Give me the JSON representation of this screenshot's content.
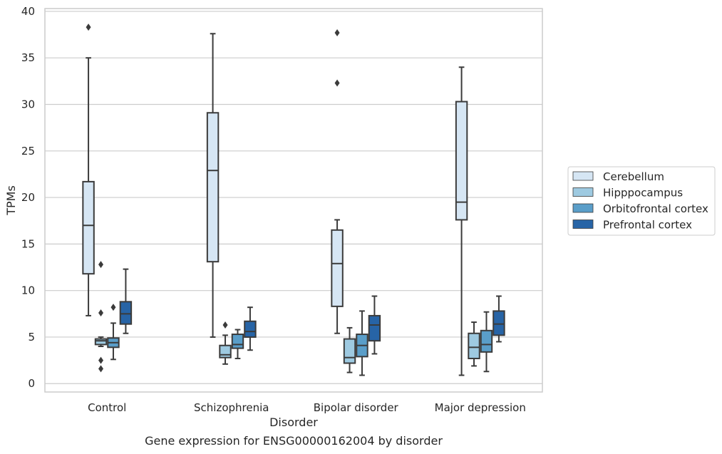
{
  "chart_data": {
    "type": "boxplot",
    "caption": "Gene expression for ENSG00000162004 by disorder",
    "xlabel": "Disorder",
    "ylabel": "TPMs",
    "ylim": [
      -0.9,
      40.3
    ],
    "yticks": [
      0,
      5,
      10,
      15,
      20,
      25,
      30,
      35,
      40
    ],
    "grid": "horizontal",
    "legend_position": "right",
    "categories": [
      "Control",
      "Schizophrenia",
      "Bipolar disorder",
      "Major depression"
    ],
    "series": [
      {
        "name": "Cerebellum",
        "color": "#d6e6f4",
        "boxes": [
          {
            "whislo": 7.3,
            "q1": 11.8,
            "med": 17.0,
            "q3": 21.7,
            "whishi": 35.0,
            "fliers": [
              38.3
            ]
          },
          {
            "whislo": 5.0,
            "q1": 13.1,
            "med": 22.9,
            "q3": 29.1,
            "whishi": 37.6,
            "fliers": []
          },
          {
            "whislo": 5.4,
            "q1": 8.3,
            "med": 12.9,
            "q3": 16.5,
            "whishi": 17.6,
            "fliers": [
              32.3,
              37.7
            ]
          },
          {
            "whislo": 0.9,
            "q1": 17.6,
            "med": 19.5,
            "q3": 30.3,
            "whishi": 34.0,
            "fliers": []
          }
        ]
      },
      {
        "name": "Hipppocampus",
        "color": "#9ecae1",
        "boxes": [
          {
            "whislo": 4.0,
            "q1": 4.2,
            "med": 4.6,
            "q3": 4.8,
            "whishi": 5.0,
            "fliers": [
              12.8,
              7.6,
              2.5,
              1.6
            ]
          },
          {
            "whislo": 2.1,
            "q1": 2.8,
            "med": 3.1,
            "q3": 4.1,
            "whishi": 5.2,
            "fliers": [
              6.3
            ]
          },
          {
            "whislo": 1.2,
            "q1": 2.2,
            "med": 2.8,
            "q3": 4.8,
            "whishi": 6.0,
            "fliers": []
          },
          {
            "whislo": 1.9,
            "q1": 2.7,
            "med": 3.9,
            "q3": 5.4,
            "whishi": 6.6,
            "fliers": []
          }
        ]
      },
      {
        "name": "Orbitofrontal cortex",
        "color": "#5a9ec9",
        "boxes": [
          {
            "whislo": 2.6,
            "q1": 3.9,
            "med": 4.4,
            "q3": 4.9,
            "whishi": 6.5,
            "fliers": [
              8.2
            ]
          },
          {
            "whislo": 2.7,
            "q1": 3.8,
            "med": 4.2,
            "q3": 5.3,
            "whishi": 5.8,
            "fliers": []
          },
          {
            "whislo": 0.9,
            "q1": 2.9,
            "med": 4.1,
            "q3": 5.3,
            "whishi": 7.8,
            "fliers": []
          },
          {
            "whislo": 1.3,
            "q1": 3.4,
            "med": 4.2,
            "q3": 5.7,
            "whishi": 7.7,
            "fliers": []
          }
        ]
      },
      {
        "name": "Prefrontal cortex",
        "color": "#2764a6",
        "boxes": [
          {
            "whislo": 5.4,
            "q1": 6.4,
            "med": 7.5,
            "q3": 8.8,
            "whishi": 12.3,
            "fliers": []
          },
          {
            "whislo": 3.6,
            "q1": 5.0,
            "med": 5.6,
            "q3": 6.7,
            "whishi": 8.2,
            "fliers": []
          },
          {
            "whislo": 3.2,
            "q1": 4.6,
            "med": 6.3,
            "q3": 7.3,
            "whishi": 9.4,
            "fliers": []
          },
          {
            "whislo": 4.5,
            "q1": 5.2,
            "med": 6.4,
            "q3": 7.8,
            "whishi": 9.4,
            "fliers": []
          }
        ]
      }
    ]
  }
}
